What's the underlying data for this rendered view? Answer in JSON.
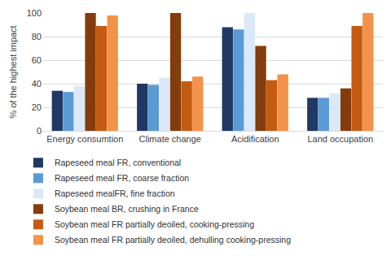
{
  "chart_data": {
    "type": "bar",
    "y_label": "% of the highest impact",
    "categories": [
      "Energy consumtion",
      "Climate change",
      "Acidification",
      "Land occupation"
    ],
    "series": [
      {
        "name": "Rapeseed meal FR, conventional",
        "color": "#1f3864",
        "values": [
          34,
          40,
          88,
          28
        ]
      },
      {
        "name": "Rapeseed meal FR, coarse fraction",
        "color": "#5b9bd5",
        "values": [
          33,
          39,
          86,
          28
        ]
      },
      {
        "name": "Rapeseed mealFR, fine fraction",
        "color": "#dae8f7",
        "values": [
          38,
          45,
          100,
          32
        ]
      },
      {
        "name": "Soybean meal BR, crushing in France",
        "color": "#843c0c",
        "values": [
          100,
          100,
          72,
          36
        ]
      },
      {
        "name": "Soybean meal FR partially deoiled, cooking-pressing",
        "color": "#c55a11",
        "values": [
          89,
          42,
          43,
          89
        ]
      },
      {
        "name": "Soybean meal FR partially deoiled, dehulling cooking-pressing",
        "color": "#f4924a",
        "values": [
          98,
          46,
          48,
          100
        ]
      }
    ],
    "ylim": [
      0,
      100
    ],
    "yticks": [
      0,
      20,
      40,
      60,
      80,
      100
    ],
    "grid": true,
    "legend": "bottom"
  }
}
